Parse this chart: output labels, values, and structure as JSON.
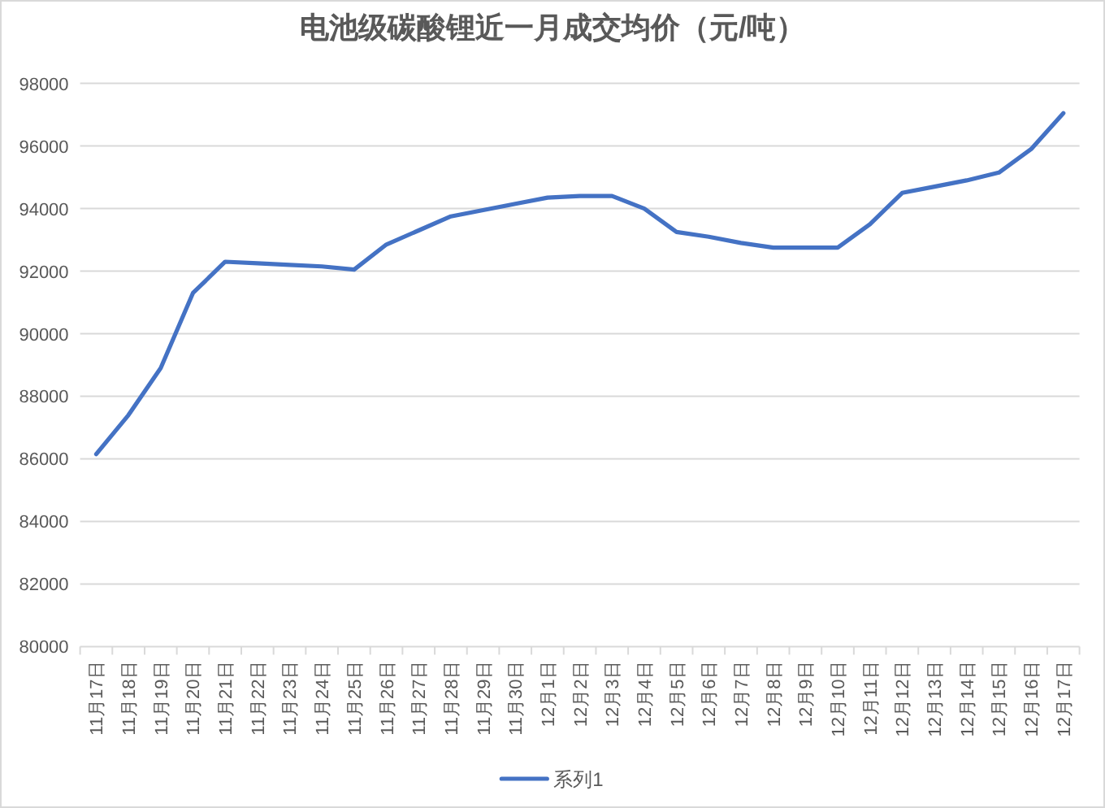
{
  "chart_data": {
    "type": "line",
    "title": "电池级碳酸锂近一月成交均价（元/吨）",
    "categories": [
      "11月17日",
      "11月18日",
      "11月19日",
      "11月20日",
      "11月21日",
      "11月22日",
      "11月23日",
      "11月24日",
      "11月25日",
      "11月26日",
      "11月27日",
      "11月28日",
      "11月29日",
      "11月30日",
      "12月1日",
      "12月2日",
      "12月3日",
      "12月4日",
      "12月5日",
      "12月6日",
      "12月7日",
      "12月8日",
      "12月9日",
      "12月10日",
      "12月11日",
      "12月12日",
      "12月13日",
      "12月14日",
      "12月15日",
      "12月16日",
      "12月17日"
    ],
    "series": [
      {
        "name": "系列1",
        "color": "#4472c4",
        "values": [
          86150,
          87400,
          88900,
          91300,
          92300,
          92250,
          92200,
          92150,
          92050,
          92850,
          93300,
          93750,
          93950,
          94150,
          94350,
          94400,
          94400,
          94000,
          93250,
          93100,
          92900,
          92750,
          92750,
          92750,
          93500,
          94500,
          94700,
          94900,
          95150,
          95900,
          97050
        ]
      }
    ],
    "ylim": [
      80000,
      98000
    ],
    "yticks": [
      80000,
      82000,
      84000,
      86000,
      88000,
      90000,
      92000,
      94000,
      96000,
      98000
    ],
    "grid": "y",
    "legend": "bottom"
  }
}
